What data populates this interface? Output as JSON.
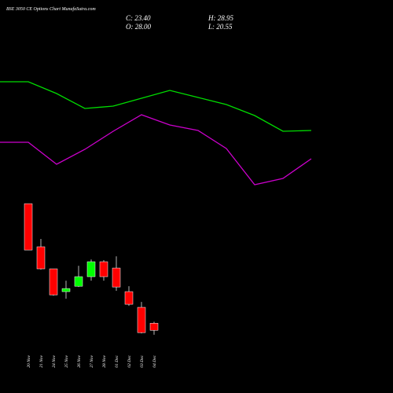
{
  "chart_data": [
    {
      "type": "candlestick",
      "title": "BSE 3050 CE Options Chart MunafaSutra.com",
      "close_label": "C: 23.40",
      "high_label": "H: 28.95",
      "open_label": "O: 28.00",
      "low_label": "L: 20.55",
      "categories": [
        "20 Nov",
        "21 Nov",
        "24 Nov",
        "25 Nov",
        "26 Nov",
        "27 Nov",
        "28 Nov",
        "01 Dec",
        "02 Dec",
        "03 Dec",
        "04 Dec"
      ],
      "open": [
        105.6,
        77.6,
        63.3,
        48.5,
        52.0,
        58.2,
        67.9,
        63.8,
        48.5,
        38.3,
        28.0
      ],
      "high": [
        105.6,
        82.7,
        63.3,
        55.6,
        65.3,
        69.4,
        68.9,
        71.4,
        52.0,
        41.8,
        28.95
      ],
      "low": [
        75.5,
        62.8,
        45.9,
        43.9,
        51.5,
        55.6,
        55.6,
        49.0,
        39.3,
        21.4,
        20.55
      ],
      "close": [
        75.5,
        63.3,
        46.4,
        50.5,
        58.2,
        67.9,
        58.2,
        51.5,
        40.3,
        21.9,
        23.4
      ],
      "up_color": "#00ff00",
      "down_color": "#ff0000",
      "ylim": [
        -17.3,
        237.8
      ]
    },
    {
      "type": "line",
      "series": [
        {
          "color": "#00dd00",
          "values": [
            396,
            396,
            381,
            362,
            365,
            375,
            385,
            376,
            367,
            353,
            333,
            334
          ]
        },
        {
          "color": "#cc00cc",
          "values": [
            319,
            319,
            291,
            310,
            333,
            354,
            341,
            334,
            311,
            265,
            273,
            298
          ]
        }
      ],
      "ylim": [
        0,
        500
      ]
    }
  ]
}
